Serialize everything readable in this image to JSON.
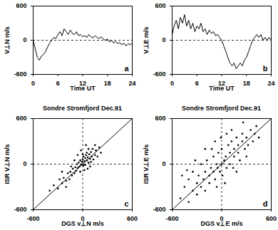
{
  "chart_data": [
    {
      "type": "line",
      "y_label": "V⊥N m/s",
      "x_label": "Time UT",
      "annotation": "a",
      "color": "#000000",
      "marker": "none",
      "xlim": [
        0,
        24
      ],
      "xticks": [
        0,
        6,
        12,
        18,
        24
      ],
      "ylim": [
        -600,
        600
      ],
      "yticks": [
        -600,
        0,
        600
      ],
      "hline": 0,
      "x": [
        0,
        0.5,
        1,
        1.5,
        2,
        2.5,
        3,
        3.5,
        4,
        4.5,
        5,
        5.5,
        6,
        6.5,
        7,
        7.5,
        8,
        8.5,
        9,
        9.5,
        10,
        10.5,
        11,
        11.5,
        12,
        12.5,
        13,
        13.5,
        14,
        14.5,
        15,
        15.5,
        16,
        16.5,
        17,
        17.5,
        18,
        18.5,
        19,
        19.5,
        20,
        20.5,
        21,
        21.5,
        22,
        22.5,
        23,
        23.5,
        24
      ],
      "values": [
        0,
        -150,
        -300,
        -350,
        -280,
        -250,
        -200,
        -120,
        -50,
        0,
        50,
        30,
        100,
        150,
        80,
        200,
        150,
        100,
        180,
        120,
        100,
        150,
        80,
        100,
        60,
        80,
        50,
        100,
        60,
        40,
        80,
        50,
        30,
        60,
        20,
        0,
        20,
        -30,
        0,
        -50,
        -20,
        -60,
        -40,
        -80,
        -50,
        -100,
        -60,
        -80,
        -50
      ]
    },
    {
      "type": "line",
      "y_label": "V⊥E m/s",
      "x_label": "Time UT",
      "annotation": "b",
      "color": "#000000",
      "marker": "none",
      "xlim": [
        0,
        24
      ],
      "xticks": [
        0,
        6,
        12,
        18,
        24
      ],
      "ylim": [
        -600,
        600
      ],
      "yticks": [
        -600,
        0,
        600
      ],
      "hline": 0,
      "x": [
        0,
        0.5,
        1,
        1.5,
        2,
        2.5,
        3,
        3.5,
        4,
        4.5,
        5,
        5.5,
        6,
        6.5,
        7,
        7.5,
        8,
        8.5,
        9,
        9.5,
        10,
        10.5,
        11,
        11.5,
        12,
        12.5,
        13,
        13.5,
        14,
        14.5,
        15,
        15.5,
        16,
        16.5,
        17,
        17.5,
        18,
        18.5,
        19,
        19.5,
        20,
        20.5,
        21,
        21.5,
        22,
        22.5,
        23,
        23.5,
        24
      ],
      "values": [
        100,
        250,
        350,
        200,
        400,
        300,
        450,
        250,
        350,
        200,
        300,
        150,
        250,
        200,
        300,
        150,
        200,
        100,
        180,
        120,
        150,
        80,
        100,
        50,
        0,
        -100,
        -200,
        -300,
        -400,
        -450,
        -400,
        -500,
        -450,
        -400,
        -450,
        -350,
        -300,
        -200,
        -100,
        0,
        50,
        100,
        50,
        100,
        0,
        50,
        0,
        50,
        0
      ]
    },
    {
      "type": "scatter",
      "title": "Sondre Stromfjord Dec.91",
      "y_label": "ISR V⊥N m/s",
      "x_label": "DGS v⊥N m/s",
      "annotation": "c",
      "color": "#000000",
      "marker": "dot",
      "xlim": [
        -600,
        600
      ],
      "xticks": [
        -600,
        0,
        600
      ],
      "ylim": [
        -600,
        600
      ],
      "yticks": [
        -600,
        0,
        600
      ],
      "hline": 0,
      "vline": 0,
      "fit_line": {
        "x": [
          -600,
          600
        ],
        "y": [
          -600,
          600
        ]
      },
      "x": [
        -400,
        -350,
        -300,
        -280,
        -250,
        -230,
        -200,
        -180,
        -160,
        -150,
        -130,
        -120,
        -100,
        -90,
        -80,
        -70,
        -60,
        -50,
        -40,
        -30,
        -20,
        -10,
        0,
        0,
        10,
        10,
        20,
        30,
        30,
        40,
        50,
        50,
        60,
        70,
        80,
        90,
        100,
        110,
        120,
        130,
        150,
        160,
        180,
        200,
        40,
        -20,
        60,
        -100,
        20,
        -60,
        100,
        -30,
        70,
        0,
        -140,
        150,
        220,
        -250,
        -200,
        90
      ],
      "y": [
        -350,
        -280,
        -320,
        -200,
        -250,
        -180,
        -220,
        -120,
        -200,
        -100,
        -150,
        -60,
        -120,
        -40,
        -90,
        0,
        -50,
        20,
        -30,
        50,
        -10,
        30,
        0,
        60,
        -20,
        100,
        40,
        80,
        -10,
        120,
        50,
        150,
        90,
        20,
        130,
        70,
        160,
        100,
        200,
        60,
        120,
        180,
        100,
        220,
        250,
        180,
        -60,
        50,
        -80,
        120,
        30,
        -100,
        200,
        130,
        -30,
        250,
        150,
        -100,
        -300,
        -30
      ]
    },
    {
      "type": "scatter",
      "title": "Sondre Stromfjord Dec.91",
      "y_label": "ISR V⊥E m/s",
      "x_label": "DGS v⊥E m/s",
      "annotation": "d",
      "color": "#000000",
      "marker": "dot",
      "xlim": [
        -600,
        600
      ],
      "xticks": [
        -600,
        0,
        600
      ],
      "ylim": [
        -600,
        600
      ],
      "yticks": [
        -600,
        0,
        600
      ],
      "hline": 0,
      "vline": 0,
      "fit_line": {
        "x": [
          -600,
          600
        ],
        "y": [
          -600,
          600
        ]
      },
      "x": [
        -500,
        -450,
        -400,
        -400,
        -350,
        -350,
        -300,
        -300,
        -280,
        -250,
        -250,
        -220,
        -200,
        -200,
        -180,
        -150,
        -150,
        -130,
        -100,
        -100,
        -80,
        -60,
        -50,
        -40,
        -20,
        0,
        0,
        10,
        30,
        50,
        60,
        80,
        100,
        100,
        120,
        150,
        150,
        180,
        200,
        200,
        220,
        250,
        250,
        280,
        300,
        320,
        350,
        380,
        400,
        420,
        -320,
        -120,
        40,
        -60,
        140,
        300,
        -420,
        60,
        -200,
        180,
        -80,
        260,
        -10,
        120,
        -480,
        450
      ],
      "y": [
        -450,
        -300,
        -500,
        -200,
        -350,
        -100,
        -250,
        -400,
        -150,
        -300,
        0,
        -200,
        -100,
        -350,
        50,
        -150,
        -250,
        -50,
        -100,
        100,
        -200,
        0,
        -50,
        150,
        -100,
        0,
        200,
        -150,
        50,
        100,
        -50,
        250,
        150,
        0,
        300,
        100,
        200,
        350,
        150,
        250,
        50,
        300,
        400,
        200,
        350,
        250,
        450,
        300,
        400,
        500,
        50,
        200,
        -250,
        -300,
        -50,
        100,
        -80,
        400,
        200,
        -100,
        300,
        550,
        350,
        450,
        -150,
        350
      ]
    }
  ]
}
